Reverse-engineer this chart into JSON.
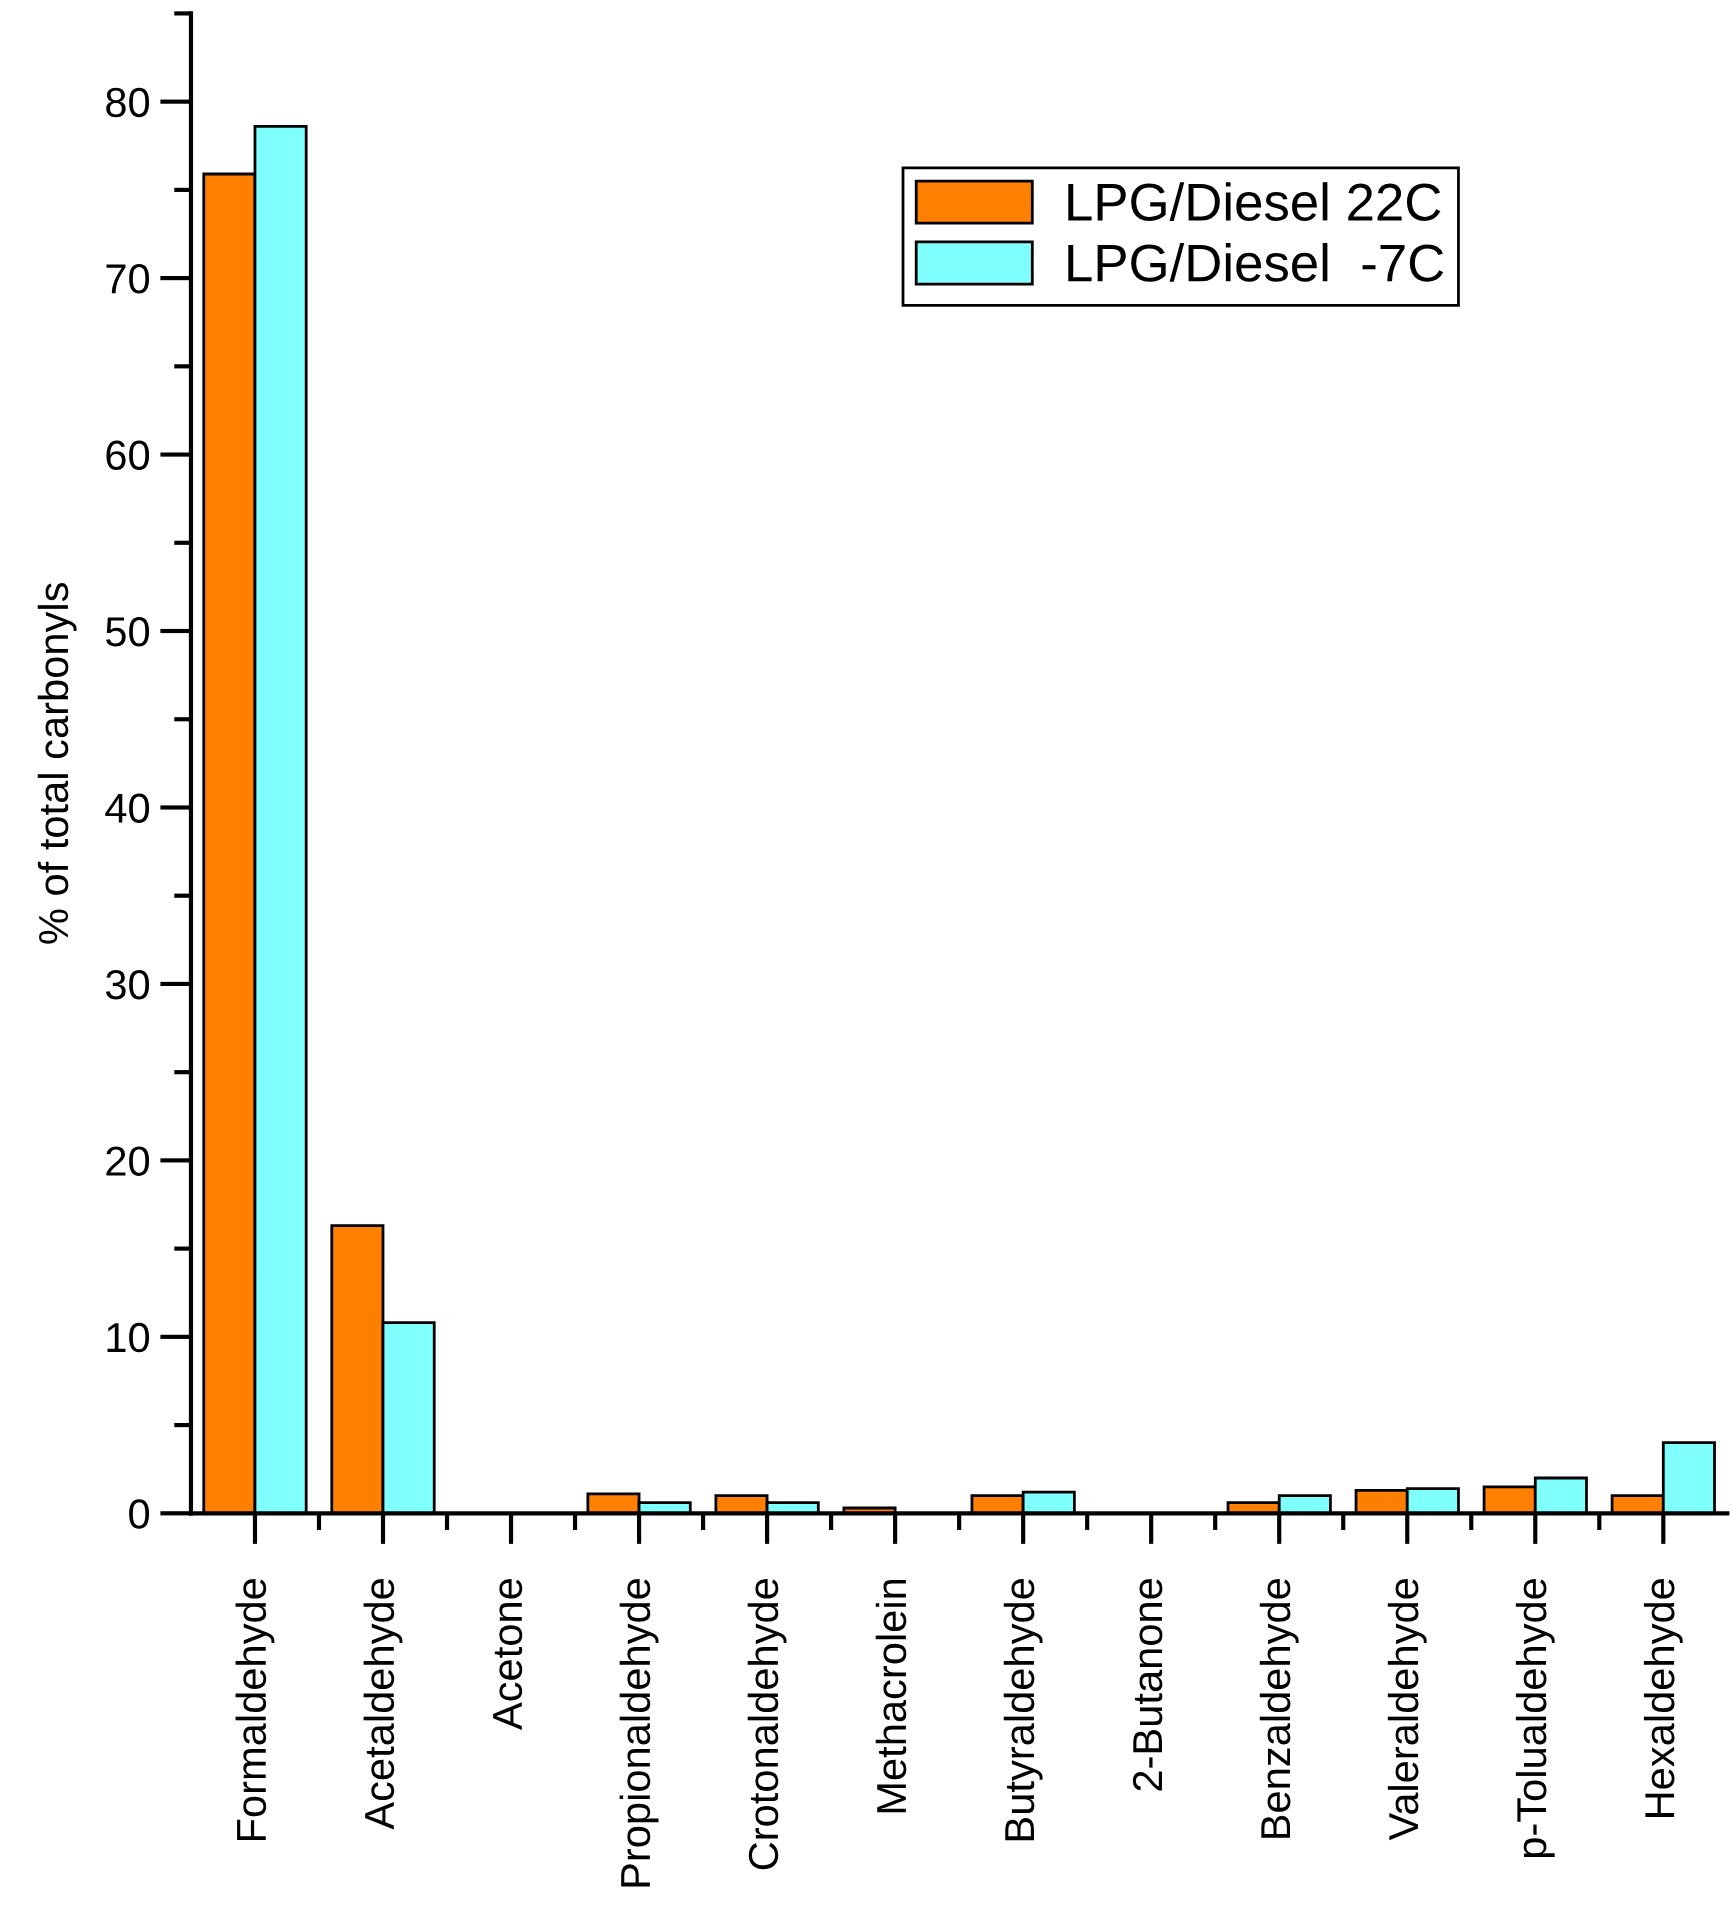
{
  "chart_data": {
    "type": "bar",
    "ylabel": "% of total carbonyls",
    "categories": [
      "Formaldehyde",
      "Acetaldehyde",
      "Acetone",
      "Propionaldehyde",
      "Crotonaldehyde",
      "Methacrolein",
      "Butyraldehyde",
      "2-Butanone",
      "Benzaldehyde",
      "Valeraldehyde",
      "p-Tolualdehyde",
      "Hexaldehyde"
    ],
    "series": [
      {
        "name": "LPG/Diesel 22C",
        "color": "#ff8000",
        "values": [
          75.9,
          16.3,
          null,
          1.1,
          1.0,
          0.3,
          1.0,
          null,
          0.6,
          1.3,
          1.5,
          1.0
        ]
      },
      {
        "name": "LPG/Diesel  -7C",
        "color": "#80ffff",
        "values": [
          78.6,
          10.8,
          null,
          0.6,
          0.6,
          null,
          1.2,
          null,
          1.0,
          1.4,
          2.0,
          4.0
        ]
      }
    ],
    "ylim": [
      0,
      85
    ],
    "yticks": [
      0,
      {
        "value": 5,
        "label": null
      },
      10,
      {
        "value": 15,
        "label": null
      },
      20,
      {
        "value": 25,
        "label": null
      },
      30,
      {
        "value": 35,
        "label": null
      },
      40,
      {
        "value": 45,
        "label": null
      },
      50,
      {
        "value": 55,
        "label": null
      },
      60,
      {
        "value": 65,
        "label": null
      },
      70,
      {
        "value": 75,
        "label": null
      },
      80,
      {
        "value": 85,
        "label": null
      }
    ],
    "legend": "top right"
  }
}
